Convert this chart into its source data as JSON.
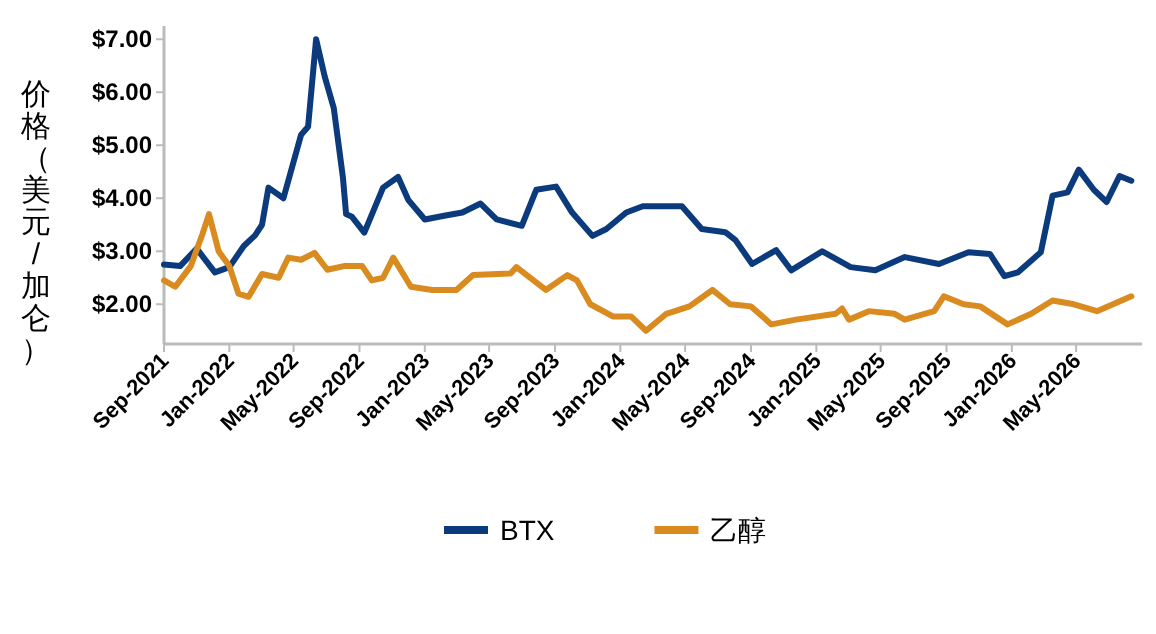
{
  "chart_data": {
    "type": "line",
    "ylabel": "价格（美元/加仑）",
    "legend": "bottom",
    "grid": false,
    "xlim": [
      "2021-09-01",
      "2026-09-01"
    ],
    "ylim": [
      1.25,
      7.25
    ],
    "xticks": [
      {
        "value": "2021-09",
        "label": "Sep-2021"
      },
      {
        "value": "2022-01",
        "label": "Jan-2022"
      },
      {
        "value": "2022-05",
        "label": "May-2022"
      },
      {
        "value": "2022-09",
        "label": "Sep-2022"
      },
      {
        "value": "2023-01",
        "label": "Jan-2023"
      },
      {
        "value": "2023-05",
        "label": "May-2023"
      },
      {
        "value": "2023-09",
        "label": "Sep-2023"
      },
      {
        "value": "2024-01",
        "label": "Jan-2024"
      },
      {
        "value": "2024-05",
        "label": "May-2024"
      },
      {
        "value": "2024-09",
        "label": "Sep-2024"
      },
      {
        "value": "2025-01",
        "label": "Jan-2025"
      },
      {
        "value": "2025-05",
        "label": "May-2025"
      },
      {
        "value": "2025-09",
        "label": "Sep-2025"
      },
      {
        "value": "2026-01",
        "label": "Jan-2026"
      },
      {
        "value": "2026-05",
        "label": "May-2026"
      }
    ],
    "yticks": [
      {
        "value": 2,
        "label": "$2.00"
      },
      {
        "value": 3,
        "label": "$3.00"
      },
      {
        "value": 4,
        "label": "$4.00"
      },
      {
        "value": 5,
        "label": "$5.00"
      },
      {
        "value": 6,
        "label": "$6.00"
      },
      {
        "value": 7,
        "label": "$7.00"
      }
    ],
    "series": [
      {
        "name": "BTX",
        "color": "#0b3b7c",
        "x": [
          "2021-09-01",
          "2021-10-01",
          "2021-11-01",
          "2021-12-05",
          "2022-01-01",
          "2022-01-28",
          "2022-02-18",
          "2022-03-03",
          "2022-03-15",
          "2022-04-12",
          "2022-05-15",
          "2022-05-28",
          "2022-06-12",
          "2022-06-28",
          "2022-07-15",
          "2022-08-01",
          "2022-08-07",
          "2022-08-18",
          "2022-09-10",
          "2022-10-15",
          "2022-11-12",
          "2022-12-01",
          "2023-01-01",
          "2023-02-06",
          "2023-03-12",
          "2023-04-15",
          "2023-05-15",
          "2023-07-01",
          "2023-07-28",
          "2023-09-03",
          "2023-10-03",
          "2023-11-10",
          "2023-12-06",
          "2024-01-12",
          "2024-02-12",
          "2024-04-25",
          "2024-06-01",
          "2024-07-15",
          "2024-08-03",
          "2024-09-03",
          "2024-10-18",
          "2024-11-15",
          "2025-01-12",
          "2025-03-06",
          "2025-04-21",
          "2025-06-15",
          "2025-08-18",
          "2025-10-12",
          "2025-11-21",
          "2025-12-18",
          "2026-01-12",
          "2026-02-24",
          "2026-03-18",
          "2026-04-15",
          "2026-05-06",
          "2026-06-03",
          "2026-06-27",
          "2026-07-21",
          "2026-08-12"
        ],
        "values": [
          2.75,
          2.72,
          3.05,
          2.6,
          2.7,
          3.1,
          3.3,
          3.5,
          4.2,
          4.0,
          5.2,
          5.35,
          7.0,
          6.3,
          5.7,
          4.4,
          3.7,
          3.65,
          3.35,
          4.2,
          4.4,
          3.97,
          3.6,
          3.67,
          3.73,
          3.9,
          3.6,
          3.48,
          4.16,
          4.22,
          3.73,
          3.29,
          3.42,
          3.73,
          3.85,
          3.85,
          3.42,
          3.36,
          3.21,
          2.76,
          3.02,
          2.64,
          3.0,
          2.7,
          2.64,
          2.89,
          2.76,
          2.98,
          2.95,
          2.53,
          2.6,
          2.98,
          4.05,
          4.11,
          4.54,
          4.16,
          3.93,
          4.42,
          4.33
        ]
      },
      {
        "name": "乙醇",
        "color": "#d98b1f",
        "x": [
          "2021-09-01",
          "2021-09-22",
          "2021-10-21",
          "2021-11-12",
          "2021-11-24",
          "2021-12-12",
          "2022-01-01",
          "2022-01-18",
          "2022-02-06",
          "2022-03-03",
          "2022-04-03",
          "2022-04-21",
          "2022-05-15",
          "2022-06-09",
          "2022-07-03",
          "2022-08-03",
          "2022-09-06",
          "2022-09-24",
          "2022-10-15",
          "2022-11-03",
          "2022-12-06",
          "2023-01-15",
          "2023-03-01",
          "2023-04-01",
          "2023-06-10",
          "2023-06-21",
          "2023-08-15",
          "2023-09-24",
          "2023-10-12",
          "2023-11-06",
          "2023-12-18",
          "2024-01-21",
          "2024-02-18",
          "2024-03-27",
          "2024-05-09",
          "2024-06-21",
          "2024-07-24",
          "2024-09-01",
          "2024-10-09",
          "2024-11-24",
          "2025-02-06",
          "2025-02-18",
          "2025-03-03",
          "2025-04-09",
          "2025-05-27",
          "2025-06-15",
          "2025-08-09",
          "2025-08-27",
          "2025-10-03",
          "2025-11-03",
          "2025-12-24",
          "2026-02-06",
          "2026-03-18",
          "2026-04-27",
          "2026-06-09",
          "2026-08-12"
        ],
        "values": [
          2.45,
          2.33,
          2.72,
          3.33,
          3.7,
          3.0,
          2.72,
          2.2,
          2.14,
          2.57,
          2.5,
          2.88,
          2.84,
          2.97,
          2.65,
          2.72,
          2.72,
          2.45,
          2.5,
          2.88,
          2.33,
          2.27,
          2.27,
          2.55,
          2.58,
          2.7,
          2.27,
          2.55,
          2.45,
          2.0,
          1.77,
          1.77,
          1.5,
          1.82,
          1.96,
          2.27,
          2.0,
          1.96,
          1.62,
          1.71,
          1.82,
          1.92,
          1.71,
          1.87,
          1.82,
          1.71,
          1.87,
          2.15,
          2.0,
          1.96,
          1.62,
          1.82,
          2.07,
          2.0,
          1.87,
          2.15
        ]
      }
    ]
  }
}
